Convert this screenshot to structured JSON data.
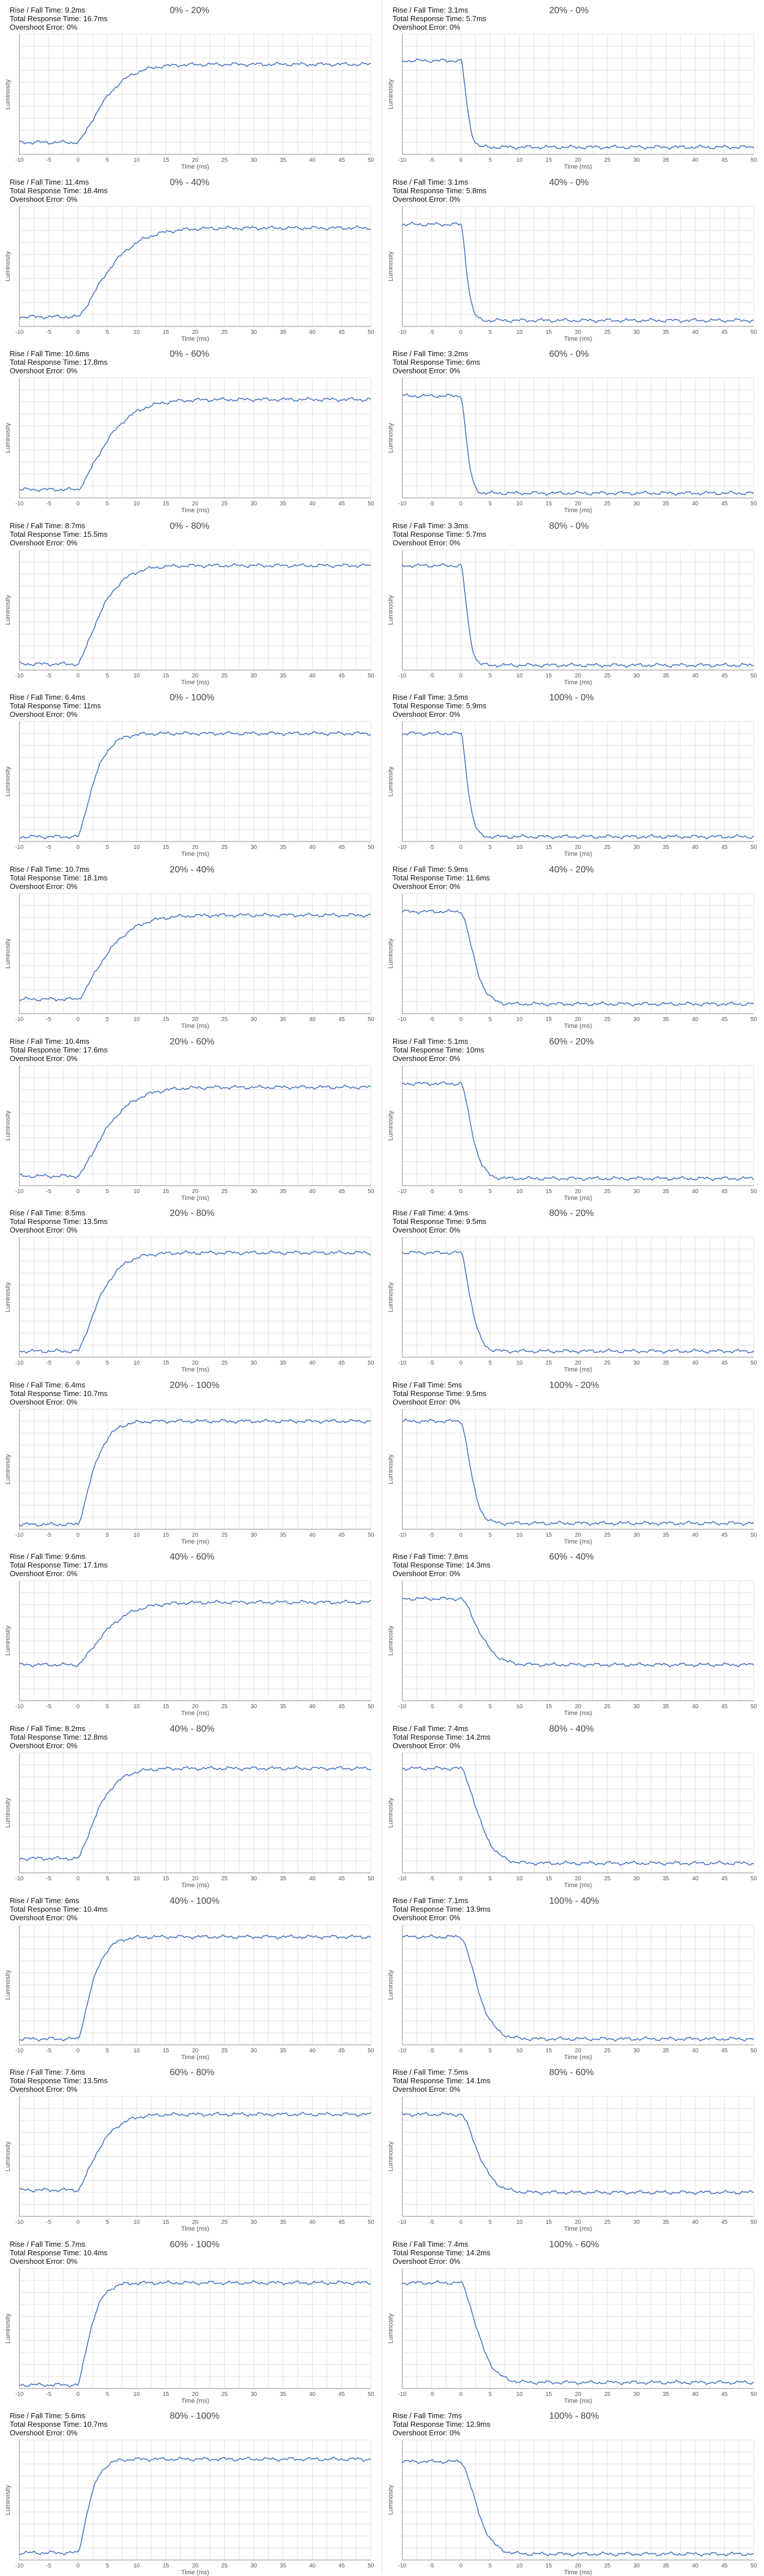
{
  "labels": {
    "rise_fall": "Rise / Fall Time:",
    "total": "Total Response Time:",
    "overshoot": "Overshoot Error:",
    "xlabel": "Time (ms)",
    "ylabel": "Luminosity"
  },
  "colors": {
    "line": "#4472c4",
    "grid": "#e2e2e2",
    "axis": "#888888"
  },
  "chart_data": [
    {
      "type": "line",
      "title": "0% - 20%",
      "rise_fall": "9.2ms",
      "total": "16.7ms",
      "overshoot": "0%",
      "direction": "rise",
      "start_level": 0.1,
      "end_level": 0.75,
      "time_constant_ms": 5.5,
      "xlim": [
        -10,
        50
      ],
      "x_ticks": [
        -10,
        -5,
        0,
        5,
        10,
        15,
        20,
        25,
        30,
        35,
        40,
        45,
        50
      ],
      "xlabel": "Time (ms)",
      "ylabel": "Luminosity",
      "grid": true
    },
    {
      "type": "line",
      "title": "20% - 0%",
      "rise_fall": "3.1ms",
      "total": "5.7ms",
      "overshoot": "0%",
      "direction": "fall",
      "start_level": 0.78,
      "end_level": 0.06,
      "time_constant_ms": 1.3,
      "xlim": [
        -10,
        50
      ],
      "x_ticks": [
        -10,
        -5,
        0,
        5,
        10,
        15,
        20,
        25,
        30,
        35,
        40,
        45,
        50
      ],
      "xlabel": "Time (ms)",
      "ylabel": "Luminosity",
      "grid": true
    },
    {
      "type": "line",
      "title": "0% - 40%",
      "rise_fall": "11.4ms",
      "total": "18.4ms",
      "overshoot": "0%",
      "direction": "rise",
      "start_level": 0.08,
      "end_level": 0.82,
      "time_constant_ms": 6.5,
      "xlim": [
        -10,
        50
      ],
      "x_ticks": [
        -10,
        -5,
        0,
        5,
        10,
        15,
        20,
        25,
        30,
        35,
        40,
        45,
        50
      ],
      "xlabel": "Time (ms)",
      "ylabel": "Luminosity",
      "grid": true
    },
    {
      "type": "line",
      "title": "40% - 0%",
      "rise_fall": "3.1ms",
      "total": "5.8ms",
      "overshoot": "0%",
      "direction": "fall",
      "start_level": 0.85,
      "end_level": 0.05,
      "time_constant_ms": 1.3,
      "xlim": [
        -10,
        50
      ],
      "x_ticks": [
        -10,
        -5,
        0,
        5,
        10,
        15,
        20,
        25,
        30,
        35,
        40,
        45,
        50
      ],
      "xlabel": "Time (ms)",
      "ylabel": "Luminosity",
      "grid": true
    },
    {
      "type": "line",
      "title": "0% - 60%",
      "rise_fall": "10.6ms",
      "total": "17.8ms",
      "overshoot": "0%",
      "direction": "rise",
      "start_level": 0.07,
      "end_level": 0.82,
      "time_constant_ms": 6.0,
      "xlim": [
        -10,
        50
      ],
      "x_ticks": [
        -10,
        -5,
        0,
        5,
        10,
        15,
        20,
        25,
        30,
        35,
        40,
        45,
        50
      ],
      "xlabel": "Time (ms)",
      "ylabel": "Luminosity",
      "grid": true
    },
    {
      "type": "line",
      "title": "60% - 0%",
      "rise_fall": "3.2ms",
      "total": "6ms",
      "overshoot": "0%",
      "direction": "fall",
      "start_level": 0.85,
      "end_level": 0.04,
      "time_constant_ms": 1.3,
      "xlim": [
        -10,
        50
      ],
      "x_ticks": [
        -10,
        -5,
        0,
        5,
        10,
        15,
        20,
        25,
        30,
        35,
        40,
        45,
        50
      ],
      "xlabel": "Time (ms)",
      "ylabel": "Luminosity",
      "grid": true
    },
    {
      "type": "line",
      "title": "0% - 80%",
      "rise_fall": "8.7ms",
      "total": "15.5ms",
      "overshoot": "0%",
      "direction": "rise",
      "start_level": 0.05,
      "end_level": 0.87,
      "time_constant_ms": 4.8,
      "xlim": [
        -10,
        50
      ],
      "x_ticks": [
        -10,
        -5,
        0,
        5,
        10,
        15,
        20,
        25,
        30,
        35,
        40,
        45,
        50
      ],
      "xlabel": "Time (ms)",
      "ylabel": "Luminosity",
      "grid": true
    },
    {
      "type": "line",
      "title": "80% - 0%",
      "rise_fall": "3.3ms",
      "total": "5.7ms",
      "overshoot": "0%",
      "direction": "fall",
      "start_level": 0.87,
      "end_level": 0.04,
      "time_constant_ms": 1.4,
      "xlim": [
        -10,
        50
      ],
      "x_ticks": [
        -10,
        -5,
        0,
        5,
        10,
        15,
        20,
        25,
        30,
        35,
        40,
        45,
        50
      ],
      "xlabel": "Time (ms)",
      "ylabel": "Luminosity",
      "grid": true
    },
    {
      "type": "line",
      "title": "0% - 100%",
      "rise_fall": "6.4ms",
      "total": "11ms",
      "overshoot": "0%",
      "direction": "rise",
      "start_level": 0.04,
      "end_level": 0.9,
      "time_constant_ms": 3.3,
      "xlim": [
        -10,
        50
      ],
      "x_ticks": [
        -10,
        -5,
        0,
        5,
        10,
        15,
        20,
        25,
        30,
        35,
        40,
        45,
        50
      ],
      "xlabel": "Time (ms)",
      "ylabel": "Luminosity",
      "grid": true
    },
    {
      "type": "line",
      "title": "100% - 0%",
      "rise_fall": "3.5ms",
      "total": "5.9ms",
      "overshoot": "0%",
      "direction": "fall",
      "start_level": 0.9,
      "end_level": 0.04,
      "time_constant_ms": 1.5,
      "xlim": [
        -10,
        50
      ],
      "x_ticks": [
        -10,
        -5,
        0,
        5,
        10,
        15,
        20,
        25,
        30,
        35,
        40,
        45,
        50
      ],
      "xlabel": "Time (ms)",
      "ylabel": "Luminosity",
      "grid": true
    },
    {
      "type": "line",
      "title": "20% - 40%",
      "rise_fall": "10.7ms",
      "total": "18.1ms",
      "overshoot": "0%",
      "direction": "rise",
      "start_level": 0.12,
      "end_level": 0.82,
      "time_constant_ms": 6.0,
      "xlim": [
        -10,
        50
      ],
      "x_ticks": [
        -10,
        -5,
        0,
        5,
        10,
        15,
        20,
        25,
        30,
        35,
        40,
        45,
        50
      ],
      "xlabel": "Time (ms)",
      "ylabel": "Luminosity",
      "grid": true
    },
    {
      "type": "line",
      "title": "40% - 20%",
      "rise_fall": "5.9ms",
      "total": "11.6ms",
      "overshoot": "0%",
      "direction": "fall",
      "start_level": 0.85,
      "end_level": 0.08,
      "time_constant_ms": 2.8,
      "xlim": [
        -10,
        50
      ],
      "x_ticks": [
        -10,
        -5,
        0,
        5,
        10,
        15,
        20,
        25,
        30,
        35,
        40,
        45,
        50
      ],
      "xlabel": "Time (ms)",
      "ylabel": "Luminosity",
      "grid": true
    },
    {
      "type": "line",
      "title": "20% - 60%",
      "rise_fall": "10.4ms",
      "total": "17.6ms",
      "overshoot": "0%",
      "direction": "rise",
      "start_level": 0.08,
      "end_level": 0.82,
      "time_constant_ms": 6.0,
      "xlim": [
        -10,
        50
      ],
      "x_ticks": [
        -10,
        -5,
        0,
        5,
        10,
        15,
        20,
        25,
        30,
        35,
        40,
        45,
        50
      ],
      "xlabel": "Time (ms)",
      "ylabel": "Luminosity",
      "grid": true
    },
    {
      "type": "line",
      "title": "60% - 20%",
      "rise_fall": "5.1ms",
      "total": "10ms",
      "overshoot": "0%",
      "direction": "fall",
      "start_level": 0.85,
      "end_level": 0.06,
      "time_constant_ms": 2.4,
      "xlim": [
        -10,
        50
      ],
      "x_ticks": [
        -10,
        -5,
        0,
        5,
        10,
        15,
        20,
        25,
        30,
        35,
        40,
        45,
        50
      ],
      "xlabel": "Time (ms)",
      "ylabel": "Luminosity",
      "grid": true
    },
    {
      "type": "line",
      "title": "20% - 80%",
      "rise_fall": "8.5ms",
      "total": "13.5ms",
      "overshoot": "0%",
      "direction": "rise",
      "start_level": 0.05,
      "end_level": 0.87,
      "time_constant_ms": 4.5,
      "xlim": [
        -10,
        50
      ],
      "x_ticks": [
        -10,
        -5,
        0,
        5,
        10,
        15,
        20,
        25,
        30,
        35,
        40,
        45,
        50
      ],
      "xlabel": "Time (ms)",
      "ylabel": "Luminosity",
      "grid": true
    },
    {
      "type": "line",
      "title": "80% - 20%",
      "rise_fall": "4.9ms",
      "total": "9.5ms",
      "overshoot": "0%",
      "direction": "fall",
      "start_level": 0.87,
      "end_level": 0.05,
      "time_constant_ms": 2.2,
      "xlim": [
        -10,
        50
      ],
      "x_ticks": [
        -10,
        -5,
        0,
        5,
        10,
        15,
        20,
        25,
        30,
        35,
        40,
        45,
        50
      ],
      "xlabel": "Time (ms)",
      "ylabel": "Luminosity",
      "grid": true
    },
    {
      "type": "line",
      "title": "20% - 100%",
      "rise_fall": "6.4ms",
      "total": "10.7ms",
      "overshoot": "0%",
      "direction": "rise",
      "start_level": 0.04,
      "end_level": 0.9,
      "time_constant_ms": 3.3,
      "xlim": [
        -10,
        50
      ],
      "x_ticks": [
        -10,
        -5,
        0,
        5,
        10,
        15,
        20,
        25,
        30,
        35,
        40,
        45,
        50
      ],
      "xlabel": "Time (ms)",
      "ylabel": "Luminosity",
      "grid": true
    },
    {
      "type": "line",
      "title": "100% - 20%",
      "rise_fall": "5ms",
      "total": "9.5ms",
      "overshoot": "0%",
      "direction": "fall",
      "start_level": 0.9,
      "end_level": 0.05,
      "time_constant_ms": 2.2,
      "xlim": [
        -10,
        50
      ],
      "x_ticks": [
        -10,
        -5,
        0,
        5,
        10,
        15,
        20,
        25,
        30,
        35,
        40,
        45,
        50
      ],
      "xlabel": "Time (ms)",
      "ylabel": "Luminosity",
      "grid": true
    },
    {
      "type": "line",
      "title": "40% - 60%",
      "rise_fall": "9.6ms",
      "total": "17.1ms",
      "overshoot": "0%",
      "direction": "rise",
      "start_level": 0.3,
      "end_level": 0.82,
      "time_constant_ms": 5.8,
      "xlim": [
        -10,
        50
      ],
      "x_ticks": [
        -10,
        -5,
        0,
        5,
        10,
        15,
        20,
        25,
        30,
        35,
        40,
        45,
        50
      ],
      "xlabel": "Time (ms)",
      "ylabel": "Luminosity",
      "grid": true
    },
    {
      "type": "line",
      "title": "60% - 40%",
      "rise_fall": "7.8ms",
      "total": "14.3ms",
      "overshoot": "0%",
      "direction": "fall",
      "start_level": 0.85,
      "end_level": 0.3,
      "time_constant_ms": 4.0,
      "xlim": [
        -10,
        50
      ],
      "x_ticks": [
        -10,
        -5,
        0,
        5,
        10,
        15,
        20,
        25,
        30,
        35,
        40,
        45,
        50
      ],
      "xlabel": "Time (ms)",
      "ylabel": "Luminosity",
      "grid": true
    },
    {
      "type": "line",
      "title": "40% - 80%",
      "rise_fall": "8.2ms",
      "total": "12.8ms",
      "overshoot": "0%",
      "direction": "rise",
      "start_level": 0.12,
      "end_level": 0.87,
      "time_constant_ms": 4.2,
      "xlim": [
        -10,
        50
      ],
      "x_ticks": [
        -10,
        -5,
        0,
        5,
        10,
        15,
        20,
        25,
        30,
        35,
        40,
        45,
        50
      ],
      "xlabel": "Time (ms)",
      "ylabel": "Luminosity",
      "grid": true
    },
    {
      "type": "line",
      "title": "80% - 40%",
      "rise_fall": "7.4ms",
      "total": "14.2ms",
      "overshoot": "0%",
      "direction": "fall",
      "start_level": 0.87,
      "end_level": 0.08,
      "time_constant_ms": 3.8,
      "xlim": [
        -10,
        50
      ],
      "x_ticks": [
        -10,
        -5,
        0,
        5,
        10,
        15,
        20,
        25,
        30,
        35,
        40,
        45,
        50
      ],
      "xlabel": "Time (ms)",
      "ylabel": "Luminosity",
      "grid": true
    },
    {
      "type": "line",
      "title": "40% - 100%",
      "rise_fall": "6ms",
      "total": "10.4ms",
      "overshoot": "0%",
      "direction": "rise",
      "start_level": 0.05,
      "end_level": 0.9,
      "time_constant_ms": 3.0,
      "xlim": [
        -10,
        50
      ],
      "x_ticks": [
        -10,
        -5,
        0,
        5,
        10,
        15,
        20,
        25,
        30,
        35,
        40,
        45,
        50
      ],
      "xlabel": "Time (ms)",
      "ylabel": "Luminosity",
      "grid": true
    },
    {
      "type": "line",
      "title": "100% - 40%",
      "rise_fall": "7.1ms",
      "total": "13.9ms",
      "overshoot": "0%",
      "direction": "fall",
      "start_level": 0.9,
      "end_level": 0.05,
      "time_constant_ms": 3.6,
      "xlim": [
        -10,
        50
      ],
      "x_ticks": [
        -10,
        -5,
        0,
        5,
        10,
        15,
        20,
        25,
        30,
        35,
        40,
        45,
        50
      ],
      "xlabel": "Time (ms)",
      "ylabel": "Luminosity",
      "grid": true
    },
    {
      "type": "line",
      "title": "60% - 80%",
      "rise_fall": "7.6ms",
      "total": "13.5ms",
      "overshoot": "0%",
      "direction": "rise",
      "start_level": 0.22,
      "end_level": 0.85,
      "time_constant_ms": 4.3,
      "xlim": [
        -10,
        50
      ],
      "x_ticks": [
        -10,
        -5,
        0,
        5,
        10,
        15,
        20,
        25,
        30,
        35,
        40,
        45,
        50
      ],
      "xlabel": "Time (ms)",
      "ylabel": "Luminosity",
      "grid": true
    },
    {
      "type": "line",
      "title": "80% - 60%",
      "rise_fall": "7.5ms",
      "total": "14.1ms",
      "overshoot": "0%",
      "direction": "fall",
      "start_level": 0.85,
      "end_level": 0.2,
      "time_constant_ms": 3.8,
      "xlim": [
        -10,
        50
      ],
      "x_ticks": [
        -10,
        -5,
        0,
        5,
        10,
        15,
        20,
        25,
        30,
        35,
        40,
        45,
        50
      ],
      "xlabel": "Time (ms)",
      "ylabel": "Luminosity",
      "grid": true
    },
    {
      "type": "line",
      "title": "60% - 100%",
      "rise_fall": "5.7ms",
      "total": "10.4ms",
      "overshoot": "0%",
      "direction": "rise",
      "start_level": 0.03,
      "end_level": 0.88,
      "time_constant_ms": 2.6,
      "xlim": [
        -10,
        50
      ],
      "x_ticks": [
        -10,
        -5,
        0,
        5,
        10,
        15,
        20,
        25,
        30,
        35,
        40,
        45,
        50
      ],
      "xlabel": "Time (ms)",
      "ylabel": "Luminosity",
      "grid": true
    },
    {
      "type": "line",
      "title": "100% - 60%",
      "rise_fall": "7.4ms",
      "total": "14.2ms",
      "overshoot": "0%",
      "direction": "fall",
      "start_level": 0.88,
      "end_level": 0.05,
      "time_constant_ms": 3.7,
      "xlim": [
        -10,
        50
      ],
      "x_ticks": [
        -10,
        -5,
        0,
        5,
        10,
        15,
        20,
        25,
        30,
        35,
        40,
        45,
        50
      ],
      "xlabel": "Time (ms)",
      "ylabel": "Luminosity",
      "grid": true
    },
    {
      "type": "line",
      "title": "80% - 100%",
      "rise_fall": "5.6ms",
      "total": "10.7ms",
      "overshoot": "0%",
      "direction": "rise",
      "start_level": 0.06,
      "end_level": 0.84,
      "time_constant_ms": 2.4,
      "xlim": [
        -10,
        50
      ],
      "x_ticks": [
        -10,
        -5,
        0,
        5,
        10,
        15,
        20,
        25,
        30,
        35,
        40,
        45,
        50
      ],
      "xlabel": "Time (ms)",
      "ylabel": "Luminosity",
      "grid": true
    },
    {
      "type": "line",
      "title": "100% - 80%",
      "rise_fall": "7ms",
      "total": "12.9ms",
      "overshoot": "0%",
      "direction": "fall",
      "start_level": 0.82,
      "end_level": 0.05,
      "time_constant_ms": 3.5,
      "xlim": [
        -10,
        50
      ],
      "x_ticks": [
        -10,
        -5,
        0,
        5,
        10,
        15,
        20,
        25,
        30,
        35,
        40,
        45,
        50
      ],
      "xlabel": "Time (ms)",
      "ylabel": "Luminosity",
      "grid": true
    }
  ]
}
